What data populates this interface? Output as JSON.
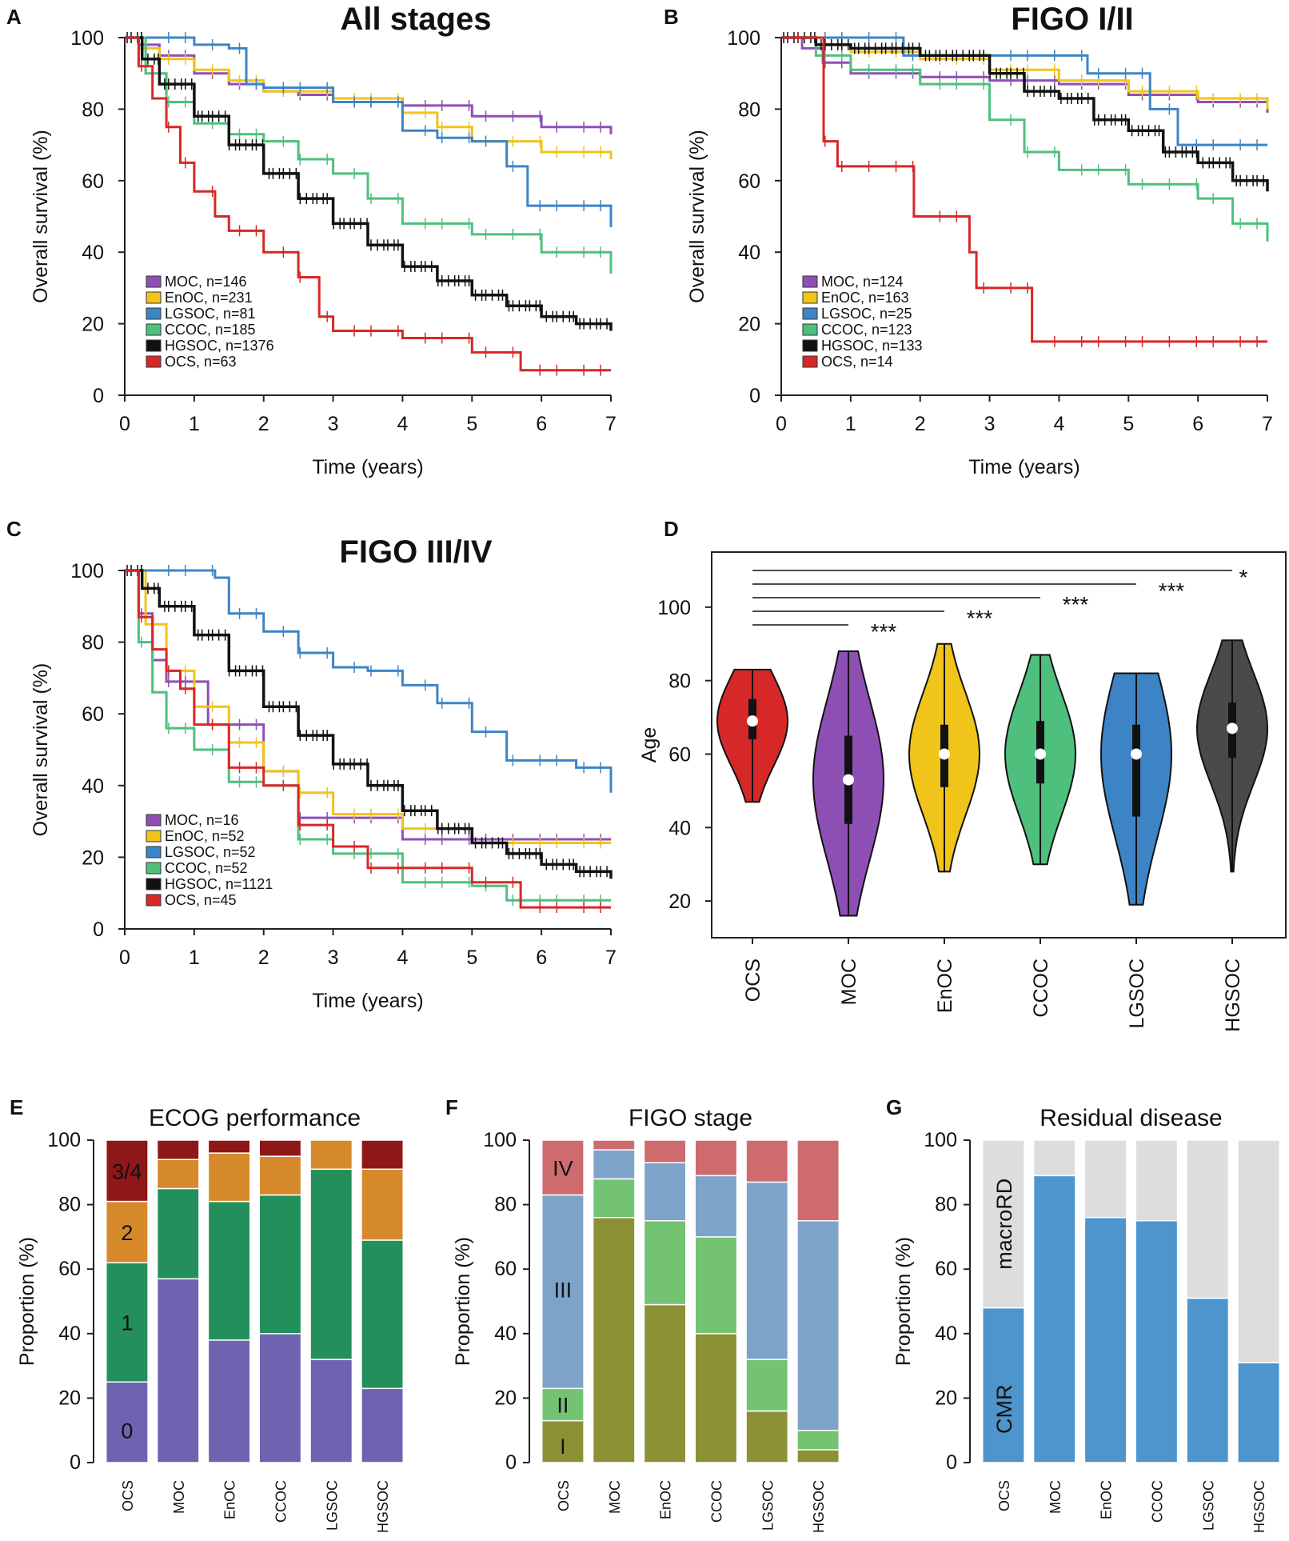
{
  "figure": {
    "panel_letters": [
      "A",
      "B",
      "C",
      "D",
      "E",
      "F",
      "G"
    ],
    "km_xlabel": "Time (years)",
    "km_ylabel": "Overall survival (%)"
  },
  "colors": {
    "MOC": "#8e4fb5",
    "EnOC": "#f0c419",
    "LGSOC": "#3d84c6",
    "CCOC": "#4fbf7d",
    "HGSOC": "#111111",
    "OCS": "#d62828",
    "ECOG0": "#6d63b0",
    "ECOG1": "#23905c",
    "ECOG2": "#d6892a",
    "ECOG34": "#8e1717",
    "FIGO_I": "#8c9136",
    "FIGO_II": "#73c373",
    "FIGO_III": "#7ea3c8",
    "FIGO_IV": "#cd6b6f",
    "CMR": "#4d95cc",
    "macroRD": "#dddddd"
  },
  "chart_data": [
    {
      "id": "A",
      "type": "line",
      "title": "All stages",
      "xlabel": "Time (years)",
      "ylabel": "Overall survival (%)",
      "xlim": [
        0,
        7
      ],
      "ylim": [
        0,
        100
      ],
      "xticks": [
        0,
        1,
        2,
        3,
        4,
        5,
        6,
        7
      ],
      "yticks": [
        0,
        20,
        40,
        60,
        80,
        100
      ],
      "legend": [
        "MOC, n=146",
        "EnOC, n=231",
        "LGSOC, n=81",
        "CCOC, n=185",
        "HGSOC, n=1376",
        "OCS, n=63"
      ],
      "series": [
        {
          "name": "MOC",
          "x": [
            0,
            0.2,
            0.5,
            1,
            1.5,
            2,
            2.5,
            3,
            4,
            5,
            6,
            7
          ],
          "y": [
            100,
            98,
            95,
            90,
            87,
            85,
            84,
            82,
            81,
            78,
            75,
            73
          ]
        },
        {
          "name": "EnOC",
          "x": [
            0,
            0.2,
            0.5,
            1,
            1.5,
            2,
            3,
            4,
            4.5,
            5,
            6,
            7
          ],
          "y": [
            100,
            97,
            94,
            91,
            88,
            85,
            83,
            79,
            75,
            71,
            68,
            66
          ]
        },
        {
          "name": "LGSOC",
          "x": [
            0,
            0.5,
            1,
            1.5,
            1.75,
            2,
            3,
            4,
            4.5,
            5,
            5.5,
            5.8,
            6.5,
            7
          ],
          "y": [
            100,
            100,
            98,
            97,
            87,
            86,
            82,
            74,
            72,
            71,
            64,
            53,
            53,
            47
          ]
        },
        {
          "name": "CCOC",
          "x": [
            0,
            0.3,
            0.6,
            1,
            1.5,
            2,
            2.5,
            3,
            3.5,
            4,
            5,
            6,
            7
          ],
          "y": [
            100,
            90,
            82,
            76,
            73,
            71,
            66,
            62,
            55,
            48,
            45,
            40,
            34
          ]
        },
        {
          "name": "HGSOC",
          "x": [
            0,
            0.25,
            0.5,
            1,
            1.5,
            2,
            2.5,
            3,
            3.5,
            4,
            4.5,
            5,
            5.5,
            6,
            6.5,
            7
          ],
          "y": [
            100,
            94,
            87,
            78,
            70,
            62,
            55,
            48,
            42,
            36,
            32,
            28,
            25,
            22,
            20,
            18
          ]
        },
        {
          "name": "OCS",
          "x": [
            0,
            0.2,
            0.4,
            0.6,
            0.8,
            1,
            1.3,
            1.5,
            2,
            2.5,
            2.8,
            3,
            3.5,
            4,
            5,
            5.7,
            7
          ],
          "y": [
            100,
            92,
            83,
            75,
            65,
            57,
            50,
            46,
            40,
            33,
            22,
            18,
            18,
            16,
            12,
            7,
            7
          ]
        }
      ]
    },
    {
      "id": "B",
      "type": "line",
      "title": "FIGO I/II",
      "xlabel": "Time (years)",
      "ylabel": "Overall survival (%)",
      "xlim": [
        0,
        7
      ],
      "ylim": [
        0,
        100
      ],
      "xticks": [
        0,
        1,
        2,
        3,
        4,
        5,
        6,
        7
      ],
      "yticks": [
        0,
        20,
        40,
        60,
        80,
        100
      ],
      "legend": [
        "MOC, n=124",
        "EnOC, n=163",
        "LGSOC, n=25",
        "CCOC, n=123",
        "HGSOC, n=133",
        "OCS, n=14"
      ],
      "series": [
        {
          "name": "MOC",
          "x": [
            0,
            0.3,
            0.6,
            1,
            2,
            3,
            4,
            5,
            6,
            7
          ],
          "y": [
            100,
            97,
            93,
            90,
            89,
            88,
            87,
            84,
            82,
            79
          ]
        },
        {
          "name": "EnOC",
          "x": [
            0,
            0.5,
            1,
            2,
            3,
            4,
            5,
            6,
            7
          ],
          "y": [
            100,
            98,
            96,
            94,
            91,
            88,
            85,
            83,
            80
          ]
        },
        {
          "name": "LGSOC",
          "x": [
            0,
            1.75,
            1.76,
            4.4,
            4.41,
            5.3,
            5.31,
            5.7,
            5.71,
            7
          ],
          "y": [
            100,
            100,
            95,
            95,
            90,
            90,
            80,
            80,
            70,
            70
          ]
        },
        {
          "name": "CCOC",
          "x": [
            0,
            0.5,
            1,
            2,
            3,
            3.5,
            4,
            5,
            6,
            6.5,
            7
          ],
          "y": [
            100,
            95,
            91,
            87,
            77,
            68,
            63,
            59,
            55,
            48,
            43
          ]
        },
        {
          "name": "HGSOC",
          "x": [
            0,
            0.5,
            1,
            2,
            3,
            3.5,
            4,
            4.5,
            5,
            5.5,
            6,
            6.5,
            7
          ],
          "y": [
            100,
            98,
            97,
            95,
            90,
            85,
            83,
            77,
            74,
            68,
            65,
            60,
            57
          ]
        },
        {
          "name": "OCS",
          "x": [
            0,
            0.6,
            0.61,
            0.8,
            0.81,
            1.9,
            1.91,
            2.7,
            2.71,
            2.8,
            2.81,
            3.6,
            3.61,
            7
          ],
          "y": [
            100,
            100,
            71,
            71,
            64,
            64,
            50,
            50,
            40,
            40,
            30,
            30,
            15,
            15
          ]
        }
      ]
    },
    {
      "id": "C",
      "type": "line",
      "title": "FIGO III/IV",
      "xlabel": "Time (years)",
      "ylabel": "Overall survival (%)",
      "xlim": [
        0,
        7
      ],
      "ylim": [
        0,
        100
      ],
      "xticks": [
        0,
        1,
        2,
        3,
        4,
        5,
        6,
        7
      ],
      "yticks": [
        0,
        20,
        40,
        60,
        80,
        100
      ],
      "legend": [
        "MOC, n=16",
        "EnOC, n=52",
        "LGSOC, n=52",
        "CCOC, n=52",
        "HGSOC, n=1121",
        "OCS, n=45"
      ],
      "series": [
        {
          "name": "MOC",
          "x": [
            0,
            0.2,
            0.4,
            0.6,
            1.2,
            2,
            2.5,
            3,
            4,
            7
          ],
          "y": [
            100,
            88,
            75,
            69,
            57,
            44,
            31,
            31,
            25,
            25
          ]
        },
        {
          "name": "EnOC",
          "x": [
            0,
            0.3,
            0.6,
            1,
            1.5,
            2,
            2.5,
            3,
            4,
            5,
            7
          ],
          "y": [
            100,
            85,
            72,
            62,
            52,
            44,
            38,
            32,
            28,
            24,
            24
          ]
        },
        {
          "name": "LGSOC",
          "x": [
            0,
            1.3,
            1.5,
            2,
            2.5,
            3,
            3.5,
            4,
            4.5,
            5,
            5.5,
            6.5,
            7
          ],
          "y": [
            100,
            98,
            88,
            83,
            77,
            73,
            72,
            68,
            63,
            55,
            47,
            45,
            38
          ]
        },
        {
          "name": "CCOC",
          "x": [
            0,
            0.2,
            0.4,
            0.6,
            1,
            1.5,
            2,
            2.5,
            3,
            4,
            5,
            5.5,
            7
          ],
          "y": [
            100,
            80,
            66,
            56,
            50,
            41,
            40,
            25,
            21,
            13,
            12,
            8,
            8
          ]
        },
        {
          "name": "HGSOC",
          "x": [
            0,
            0.25,
            0.5,
            1,
            1.5,
            2,
            2.5,
            3,
            3.5,
            4,
            4.5,
            5,
            5.5,
            6,
            6.5,
            7
          ],
          "y": [
            100,
            95,
            90,
            82,
            72,
            62,
            54,
            46,
            40,
            33,
            28,
            24,
            21,
            18,
            16,
            14
          ]
        },
        {
          "name": "OCS",
          "x": [
            0,
            0.2,
            0.4,
            0.6,
            0.8,
            1,
            1.5,
            2,
            2.5,
            3,
            3.5,
            4,
            5,
            5.7,
            7
          ],
          "y": [
            100,
            87,
            78,
            72,
            67,
            57,
            45,
            40,
            29,
            23,
            17,
            17,
            13,
            6,
            6
          ]
        }
      ]
    },
    {
      "id": "D",
      "type": "violin",
      "ylabel": "Age",
      "ylim": [
        10,
        115
      ],
      "yticks": [
        20,
        40,
        60,
        80,
        100
      ],
      "categories": [
        "OCS",
        "MOC",
        "EnOC",
        "CCOC",
        "LGSOC",
        "HGSOC"
      ],
      "groups": [
        {
          "name": "OCS",
          "min": 47,
          "q1": 64,
          "median": 69,
          "q3": 75,
          "max": 83
        },
        {
          "name": "MOC",
          "min": 16,
          "q1": 41,
          "median": 53,
          "q3": 65,
          "max": 88
        },
        {
          "name": "EnOC",
          "min": 28,
          "q1": 51,
          "median": 60,
          "q3": 68,
          "max": 90
        },
        {
          "name": "CCOC",
          "min": 30,
          "q1": 52,
          "median": 60,
          "q3": 69,
          "max": 87
        },
        {
          "name": "LGSOC",
          "min": 19,
          "q1": 43,
          "median": 60,
          "q3": 68,
          "max": 82
        },
        {
          "name": "HGSOC",
          "min": 28,
          "q1": 59,
          "median": 67,
          "q3": 74,
          "max": 91
        }
      ],
      "comparisons": [
        {
          "from": "OCS",
          "to": "HGSOC",
          "label": "*"
        },
        {
          "from": "OCS",
          "to": "LGSOC",
          "label": "***"
        },
        {
          "from": "OCS",
          "to": "CCOC",
          "label": "***"
        },
        {
          "from": "OCS",
          "to": "EnOC",
          "label": "***"
        },
        {
          "from": "OCS",
          "to": "MOC",
          "label": "***"
        }
      ]
    },
    {
      "id": "E",
      "type": "bar",
      "stacked": true,
      "title": "ECOG performance",
      "ylabel": "Proportion (%)",
      "ylim": [
        0,
        100
      ],
      "yticks": [
        0,
        20,
        40,
        60,
        80,
        100
      ],
      "categories": [
        "OCS",
        "MOC",
        "EnOC",
        "CCOC",
        "LGSOC",
        "HGSOC"
      ],
      "series": [
        {
          "name": "0",
          "values": [
            25,
            57,
            38,
            40,
            32,
            23
          ]
        },
        {
          "name": "1",
          "values": [
            37,
            28,
            43,
            43,
            59,
            46
          ]
        },
        {
          "name": "2",
          "values": [
            19,
            9,
            15,
            12,
            9,
            22
          ]
        },
        {
          "name": "3/4",
          "values": [
            19,
            6,
            4,
            5,
            0,
            9
          ]
        }
      ]
    },
    {
      "id": "F",
      "type": "bar",
      "stacked": true,
      "title": "FIGO stage",
      "ylabel": "Proportion (%)",
      "ylim": [
        0,
        100
      ],
      "yticks": [
        0,
        20,
        40,
        60,
        80,
        100
      ],
      "categories": [
        "OCS",
        "MOC",
        "EnOC",
        "CCOC",
        "LGSOC",
        "HGSOC"
      ],
      "series": [
        {
          "name": "I",
          "values": [
            13,
            76,
            49,
            40,
            16,
            4
          ]
        },
        {
          "name": "II",
          "values": [
            10,
            12,
            26,
            30,
            16,
            6
          ]
        },
        {
          "name": "III",
          "values": [
            60,
            9,
            18,
            19,
            55,
            65
          ]
        },
        {
          "name": "IV",
          "values": [
            17,
            3,
            7,
            11,
            13,
            25
          ]
        }
      ]
    },
    {
      "id": "G",
      "type": "bar",
      "stacked": true,
      "title": "Residual disease",
      "ylabel": "Proportion (%)",
      "ylim": [
        0,
        100
      ],
      "yticks": [
        0,
        20,
        40,
        60,
        80,
        100
      ],
      "categories": [
        "OCS",
        "MOC",
        "EnOC",
        "CCOC",
        "LGSOC",
        "HGSOC"
      ],
      "series": [
        {
          "name": "CMR",
          "values": [
            48,
            89,
            76,
            75,
            51,
            31
          ]
        },
        {
          "name": "macroRD",
          "values": [
            52,
            11,
            24,
            25,
            49,
            69
          ]
        }
      ]
    }
  ]
}
